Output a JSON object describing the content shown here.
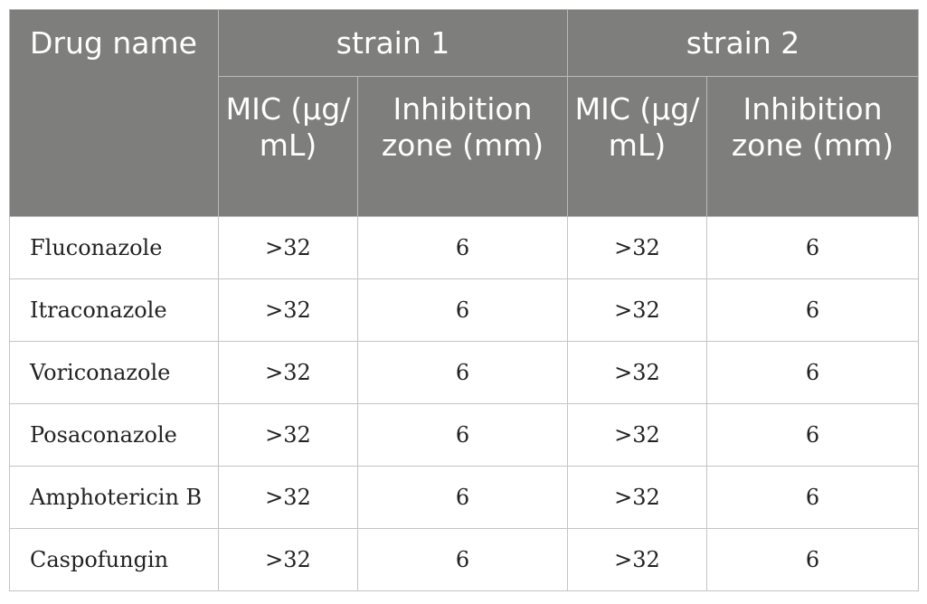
{
  "header": {
    "drug_name": "Drug name",
    "strain1": "strain 1",
    "strain2": "strain 2",
    "mic": "MIC (μg/ mL)",
    "inhibition": "Inhibition zone (mm)"
  },
  "rows": [
    {
      "drug": "Fluconazole",
      "s1_mic": ">32",
      "s1_zone": "6",
      "s2_mic": ">32",
      "s2_zone": "6"
    },
    {
      "drug": "Itraconazole",
      "s1_mic": ">32",
      "s1_zone": "6",
      "s2_mic": ">32",
      "s2_zone": "6"
    },
    {
      "drug": "Voriconazole",
      "s1_mic": ">32",
      "s1_zone": "6",
      "s2_mic": ">32",
      "s2_zone": "6"
    },
    {
      "drug": "Posaconazole",
      "s1_mic": ">32",
      "s1_zone": "6",
      "s2_mic": ">32",
      "s2_zone": "6"
    },
    {
      "drug": "Amphotericin B",
      "s1_mic": ">32",
      "s1_zone": "6",
      "s2_mic": ">32",
      "s2_zone": "6"
    },
    {
      "drug": "Caspofungin",
      "s1_mic": ">32",
      "s1_zone": "6",
      "s2_mic": ">32",
      "s2_zone": "6"
    }
  ],
  "colors": {
    "header_bg": "#7e7e7d",
    "header_text": "#ffffff",
    "border": "#c4c4c4"
  }
}
